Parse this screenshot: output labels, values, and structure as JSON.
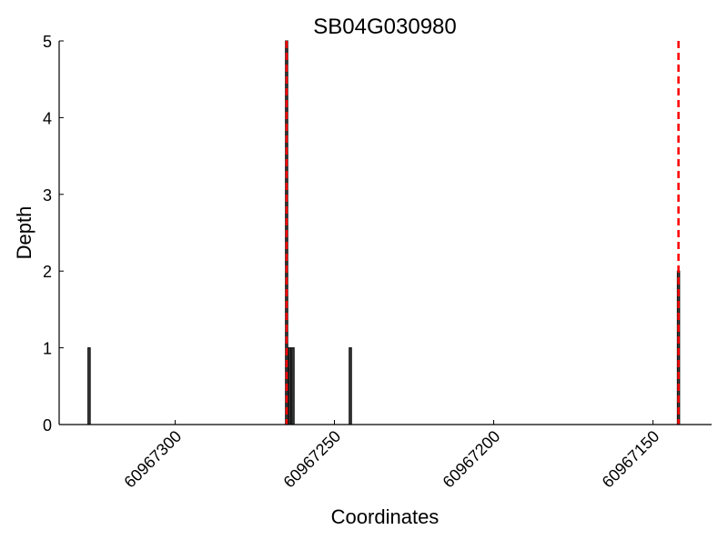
{
  "chart_data": {
    "type": "bar",
    "title": "SB04G030980",
    "xlabel": "Coordinates",
    "ylabel": "Depth",
    "xlim": [
      60967336.4,
      60967131.6
    ],
    "x_reversed": true,
    "ylim": [
      0,
      5
    ],
    "xticks": [
      60967300,
      60967250,
      60967200,
      60967150
    ],
    "xtick_labels": [
      "60967300",
      "60967250",
      "60967200",
      "60967150"
    ],
    "yticks": [
      0,
      1,
      2,
      3,
      4,
      5
    ],
    "ytick_labels": [
      "0",
      "1",
      "2",
      "3",
      "4",
      "5"
    ],
    "grid": false,
    "bars": [
      {
        "x": 60967327,
        "value": 1
      },
      {
        "x": 60967265,
        "value": 5
      },
      {
        "x": 60967264,
        "value": 1
      },
      {
        "x": 60967263,
        "value": 1
      },
      {
        "x": 60967245,
        "value": 1
      },
      {
        "x": 60967142,
        "value": 2
      }
    ],
    "vlines": [
      60967265,
      60967142
    ],
    "colors": {
      "bar": "#404040",
      "bar_edge": "#000000",
      "vline": "#ff0000"
    }
  }
}
